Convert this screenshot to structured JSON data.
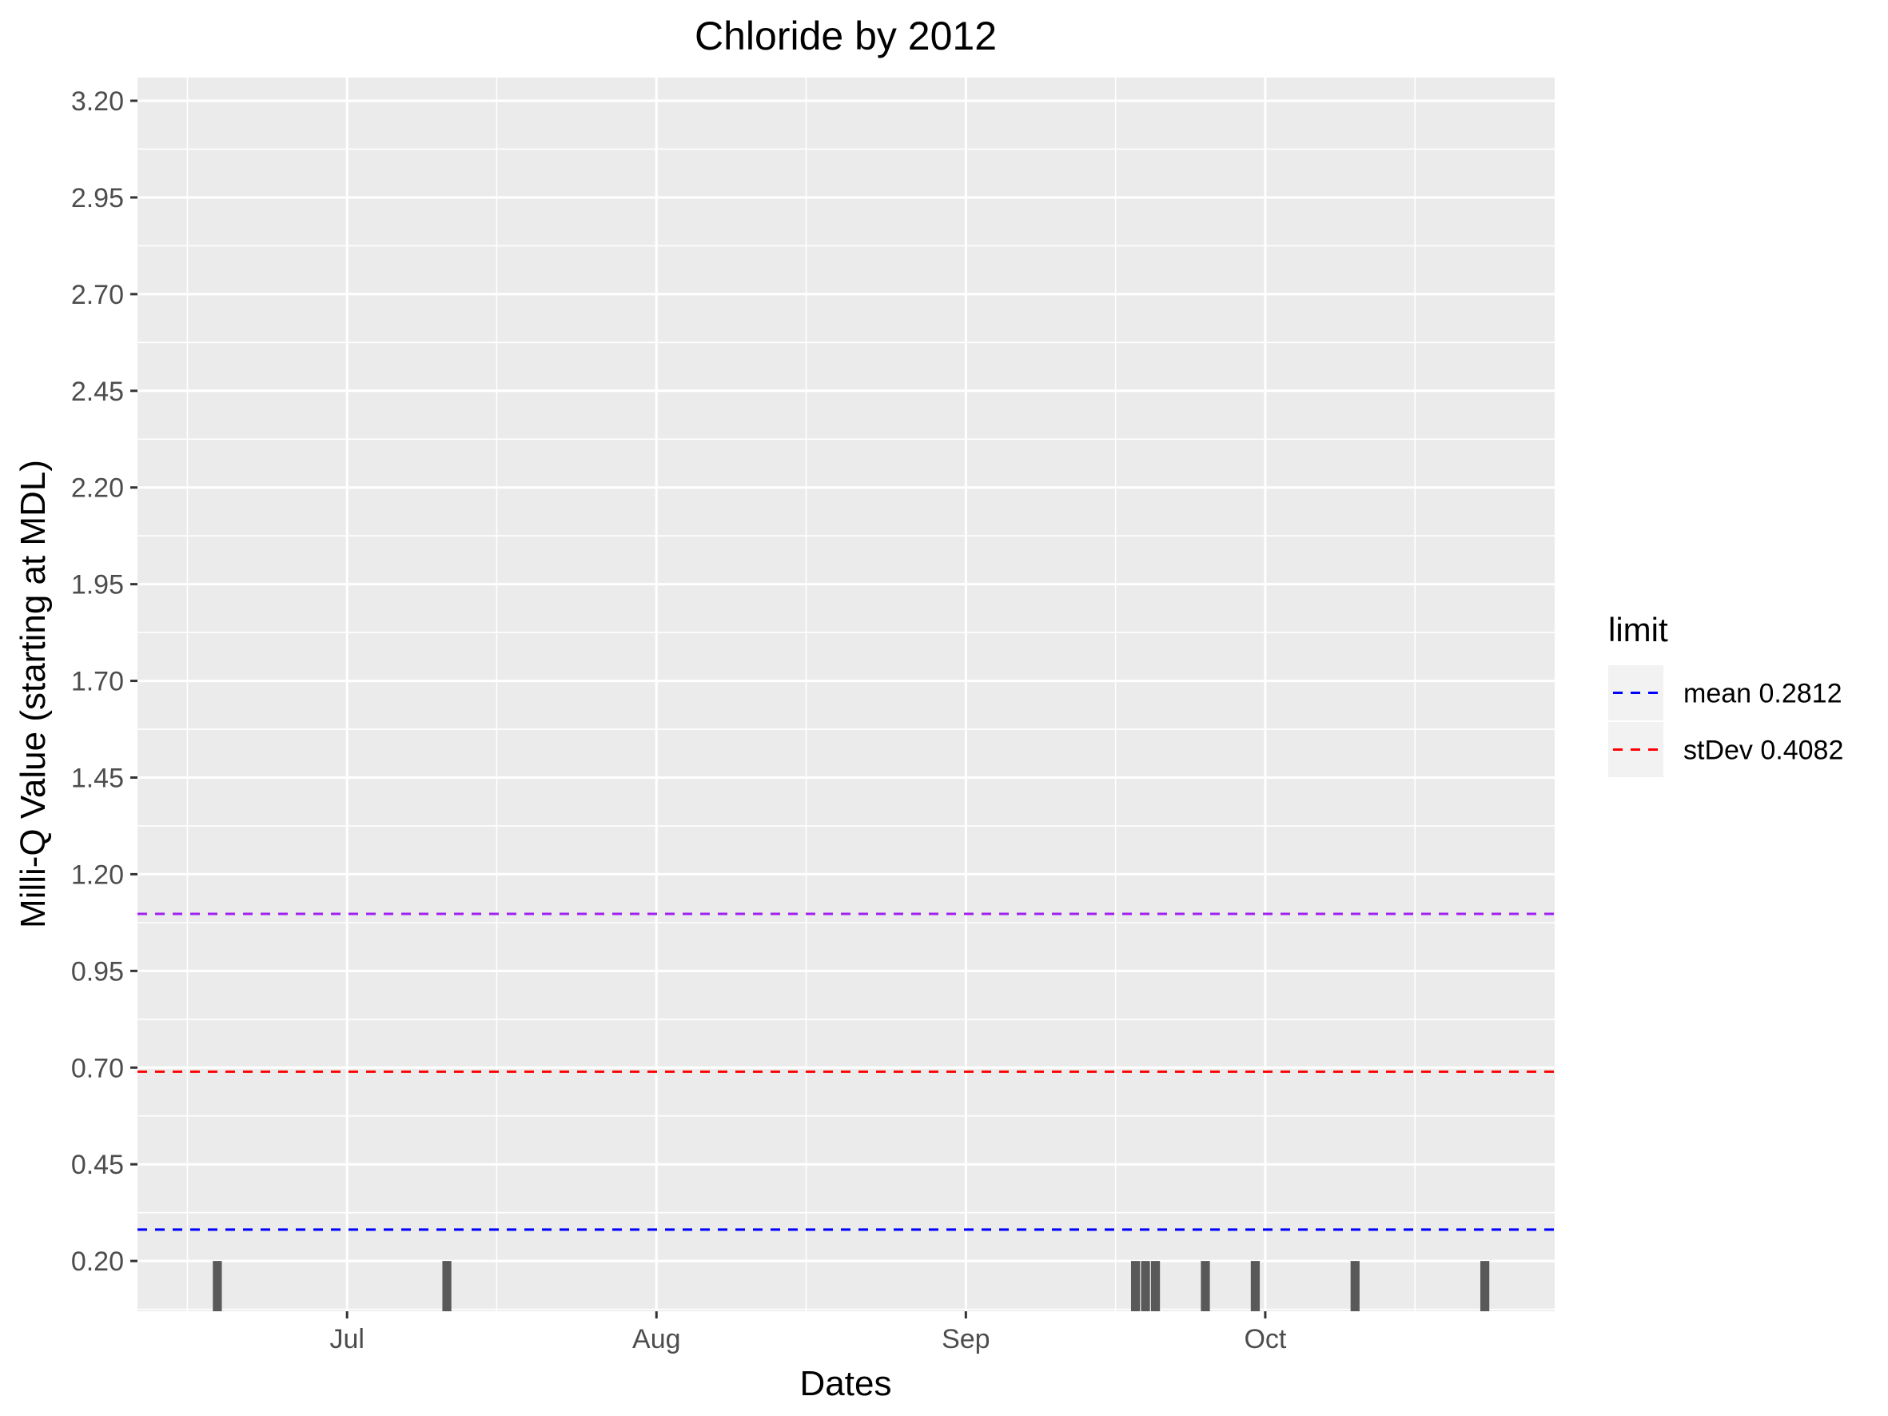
{
  "chart_data": {
    "type": "bar",
    "title": "Chloride by 2012",
    "xlabel": "Dates",
    "ylabel": "Milli-Q Value (starting at MDL)",
    "xlim": [
      "2012-06-10",
      "2012-10-30"
    ],
    "ylim": [
      0.07,
      3.26
    ],
    "baseline": 0.07,
    "grid": true,
    "panel_color": "#ebebeb",
    "x_ticks": [
      {
        "label": "Jul",
        "date": "2012-07-01"
      },
      {
        "label": "Aug",
        "date": "2012-08-01"
      },
      {
        "label": "Sep",
        "date": "2012-09-01"
      },
      {
        "label": "Oct",
        "date": "2012-10-01"
      }
    ],
    "y_ticks": [
      "0.20",
      "0.45",
      "0.70",
      "0.95",
      "1.20",
      "1.45",
      "1.70",
      "1.95",
      "2.20",
      "2.45",
      "2.70",
      "2.95",
      "3.20"
    ],
    "bar_color": "#595959",
    "bars": [
      {
        "date": "2012-06-18",
        "value": 0.2
      },
      {
        "date": "2012-07-11",
        "value": 0.2
      },
      {
        "date": "2012-09-18",
        "value": 0.2
      },
      {
        "date": "2012-09-19",
        "value": 0.2
      },
      {
        "date": "2012-09-20",
        "value": 0.2
      },
      {
        "date": "2012-09-25",
        "value": 0.2
      },
      {
        "date": "2012-09-30",
        "value": 0.2
      },
      {
        "date": "2012-10-10",
        "value": 0.2
      },
      {
        "date": "2012-10-23",
        "value": 0.2
      }
    ],
    "hlines": [
      {
        "name": "mean 0.2812",
        "value": 0.2812,
        "color": "#0000ff",
        "in_legend": true
      },
      {
        "name": "stDev 0.4082",
        "value": 0.6894,
        "color": "#ff0000",
        "in_legend": true
      },
      {
        "value": 1.0976,
        "color": "#a020f0",
        "in_legend": false
      }
    ],
    "legend": {
      "title": "limit",
      "position": "right",
      "entries": [
        "mean 0.2812",
        "stDev 0.4082"
      ]
    }
  }
}
